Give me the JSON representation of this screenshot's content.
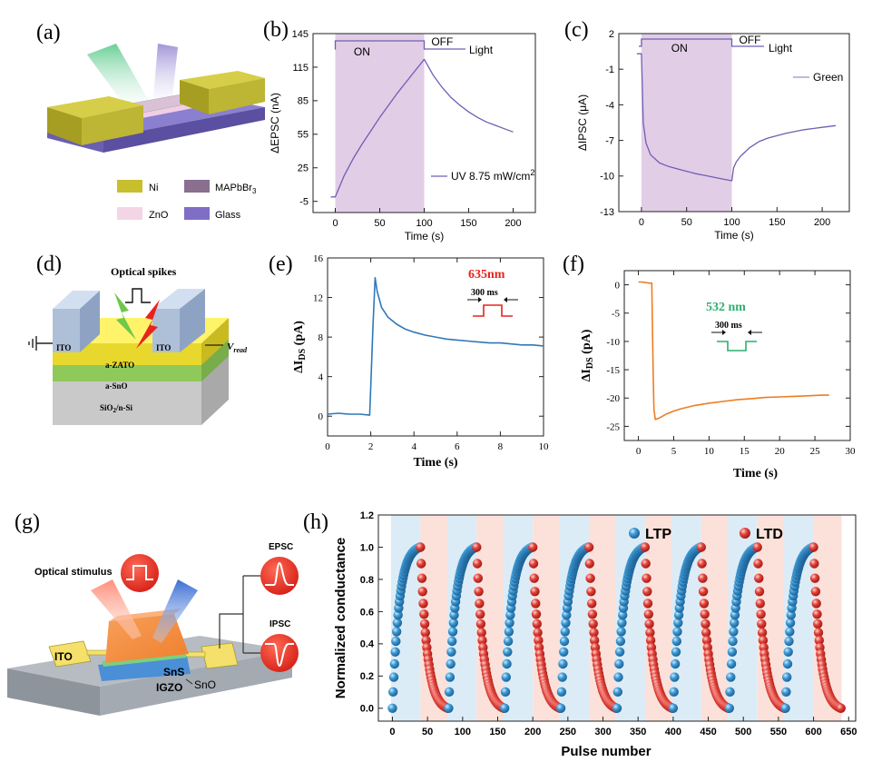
{
  "panel_labels": [
    "(a)",
    "(b)",
    "(c)",
    "(d)",
    "(e)",
    "(f)",
    "(g)",
    "(h)"
  ],
  "colors": {
    "ni": "#c8bf2e",
    "zno": "#f3d6e6",
    "glass": "#7f6ec4",
    "mapbbr3": "#8a6f8f",
    "on_band": "#e2cde6",
    "trace_purple": "#6f5fb3",
    "trace_lightpurple": "#9a90c8",
    "trace_blue": "#2f78b8",
    "trace_orange": "#ed7d22",
    "ltp": "#2f8fcc",
    "ltd": "#e0322c",
    "ltp_band": "#dcecf7",
    "ltd_band": "#fbe1da",
    "red_635": "#e8231c",
    "green_532": "#2fae6e"
  },
  "panel_a": {
    "legend": [
      {
        "label": "Ni",
        "color_key": "ni"
      },
      {
        "label": "MAPbBr",
        "sub": "3",
        "color_key": "mapbbr3"
      },
      {
        "label": "ZnO",
        "color_key": "zno"
      },
      {
        "label": "Glass",
        "color_key": "glass"
      }
    ]
  },
  "panel_d": {
    "labels": {
      "optical_spikes": "Optical spikes",
      "ito_left": "ITO",
      "ito_right": "ITO",
      "zato": "a-ZATO",
      "sno": "a-SnO",
      "substrate": "SiO",
      "substrate_sub": "2",
      "substrate_tail": "/n-Si",
      "vread": "V",
      "vread_sub": "read"
    }
  },
  "panel_g": {
    "labels": {
      "optical_stimulus": "Optical stimulus",
      "epsc": "EPSC",
      "ipsc": "IPSC",
      "ito": "ITO",
      "sns": "SnS",
      "sno": "SnO",
      "igzo": "IGZO"
    }
  },
  "chart_data": [
    {
      "panel": "b",
      "type": "line",
      "xlabel": "Time (s)",
      "ylabel": "ΔEPSC (nA)",
      "xlim": [
        -25,
        225
      ],
      "ylim": [
        -15,
        145
      ],
      "xticks": [
        0,
        50,
        100,
        150,
        200
      ],
      "yticks": [
        -5,
        25,
        55,
        85,
        115,
        145
      ],
      "on_window": [
        0,
        100
      ],
      "annotations": {
        "on": "ON",
        "off": "OFF",
        "light": "Light"
      },
      "legend": "UV 8.75 mW/cm",
      "legend_sup": "2",
      "series": [
        {
          "x": [
            -5,
            0,
            10,
            20,
            30,
            40,
            50,
            60,
            70,
            80,
            90,
            100,
            110,
            120,
            130,
            140,
            150,
            160,
            170,
            180,
            190,
            200
          ],
          "y": [
            -1,
            -1,
            18,
            33,
            46,
            58,
            70,
            81,
            92,
            102,
            112,
            122,
            108,
            97,
            88,
            81,
            75,
            70,
            66,
            63,
            60,
            57
          ]
        }
      ]
    },
    {
      "panel": "c",
      "type": "line",
      "xlabel": "Time (s)",
      "ylabel": "ΔIPSC (μA)",
      "xlim": [
        -25,
        230
      ],
      "ylim": [
        -13,
        2
      ],
      "xticks": [
        0,
        50,
        100,
        150,
        200
      ],
      "yticks": [
        -13,
        -10,
        -7,
        -4,
        -1,
        2
      ],
      "on_window": [
        0,
        100
      ],
      "annotations": {
        "on": "ON",
        "off": "OFF",
        "light": "Light"
      },
      "legend": "Green",
      "series": [
        {
          "x": [
            -5,
            0,
            2,
            5,
            10,
            20,
            30,
            40,
            50,
            60,
            70,
            80,
            90,
            100,
            102,
            105,
            110,
            120,
            130,
            140,
            150,
            160,
            170,
            180,
            190,
            200,
            215
          ],
          "y": [
            0.3,
            0.3,
            -5.5,
            -7.2,
            -8.2,
            -8.9,
            -9.2,
            -9.4,
            -9.6,
            -9.8,
            -9.95,
            -10.1,
            -10.25,
            -10.4,
            -9.3,
            -8.8,
            -8.3,
            -7.6,
            -7.1,
            -6.8,
            -6.6,
            -6.4,
            -6.25,
            -6.1,
            -6.0,
            -5.9,
            -5.75
          ]
        }
      ]
    },
    {
      "panel": "e",
      "type": "line",
      "xlabel": "Time (s)",
      "ylabel": "ΔI",
      "ylabel_sub": "DS",
      "ylabel_tail": " (pA)",
      "xlim": [
        0,
        10
      ],
      "ylim": [
        -2,
        16
      ],
      "xticks": [
        0,
        2,
        4,
        6,
        8,
        10
      ],
      "yticks": [
        0,
        4,
        8,
        12,
        16
      ],
      "legend": "635nm",
      "pulse_label": "300 ms",
      "series": [
        {
          "x": [
            0,
            0.5,
            1.0,
            1.5,
            1.95,
            2.0,
            2.1,
            2.2,
            2.3,
            2.5,
            2.8,
            3.2,
            3.6,
            4.0,
            4.5,
            5.0,
            5.5,
            6.0,
            6.5,
            7.0,
            7.5,
            8.0,
            8.5,
            9.0,
            9.5,
            10.0
          ],
          "y": [
            0.2,
            0.3,
            0.2,
            0.2,
            0.1,
            3.0,
            9.0,
            14.0,
            12.6,
            11.0,
            10.0,
            9.3,
            8.8,
            8.5,
            8.2,
            8.0,
            7.8,
            7.7,
            7.6,
            7.5,
            7.4,
            7.4,
            7.3,
            7.2,
            7.2,
            7.1
          ]
        }
      ]
    },
    {
      "panel": "f",
      "type": "line",
      "xlabel": "Time (s)",
      "ylabel": "ΔI",
      "ylabel_sub": "DS",
      "ylabel_tail": " (pA)",
      "xlim": [
        -2,
        30
      ],
      "ylim": [
        -27.5,
        2.5
      ],
      "xticks": [
        0,
        5,
        10,
        15,
        20,
        25,
        30
      ],
      "yticks": [
        0,
        -5,
        -10,
        -15,
        -20,
        -25
      ],
      "legend": "532 nm",
      "pulse_label": "300 ms",
      "series": [
        {
          "x": [
            0,
            0.5,
            1.0,
            1.5,
            1.9,
            2.0,
            2.1,
            2.2,
            2.4,
            3,
            4,
            5,
            6,
            8,
            10,
            12,
            14,
            16,
            18,
            20,
            22,
            24,
            26,
            27
          ],
          "y": [
            0.5,
            0.5,
            0.4,
            0.3,
            0.3,
            -8,
            -16,
            -22,
            -23.8,
            -23.5,
            -22.8,
            -22.3,
            -21.9,
            -21.3,
            -20.9,
            -20.6,
            -20.3,
            -20.1,
            -19.9,
            -19.8,
            -19.7,
            -19.6,
            -19.5,
            -19.5
          ]
        }
      ]
    },
    {
      "panel": "h",
      "type": "scatter",
      "xlabel": "Pulse number",
      "ylabel": "Normalized conductance",
      "xlim": [
        -20,
        660
      ],
      "ylim": [
        -0.08,
        1.2
      ],
      "xticks": [
        0,
        50,
        100,
        150,
        200,
        250,
        300,
        350,
        400,
        450,
        500,
        550,
        600,
        650
      ],
      "yticks": [
        0.0,
        0.2,
        0.4,
        0.6,
        0.8,
        1.0,
        1.2
      ],
      "cycle_length": 80,
      "cycles": 8,
      "pulses_per_phase": 40,
      "series": [
        {
          "name": "LTP"
        },
        {
          "name": "LTD"
        }
      ]
    }
  ]
}
